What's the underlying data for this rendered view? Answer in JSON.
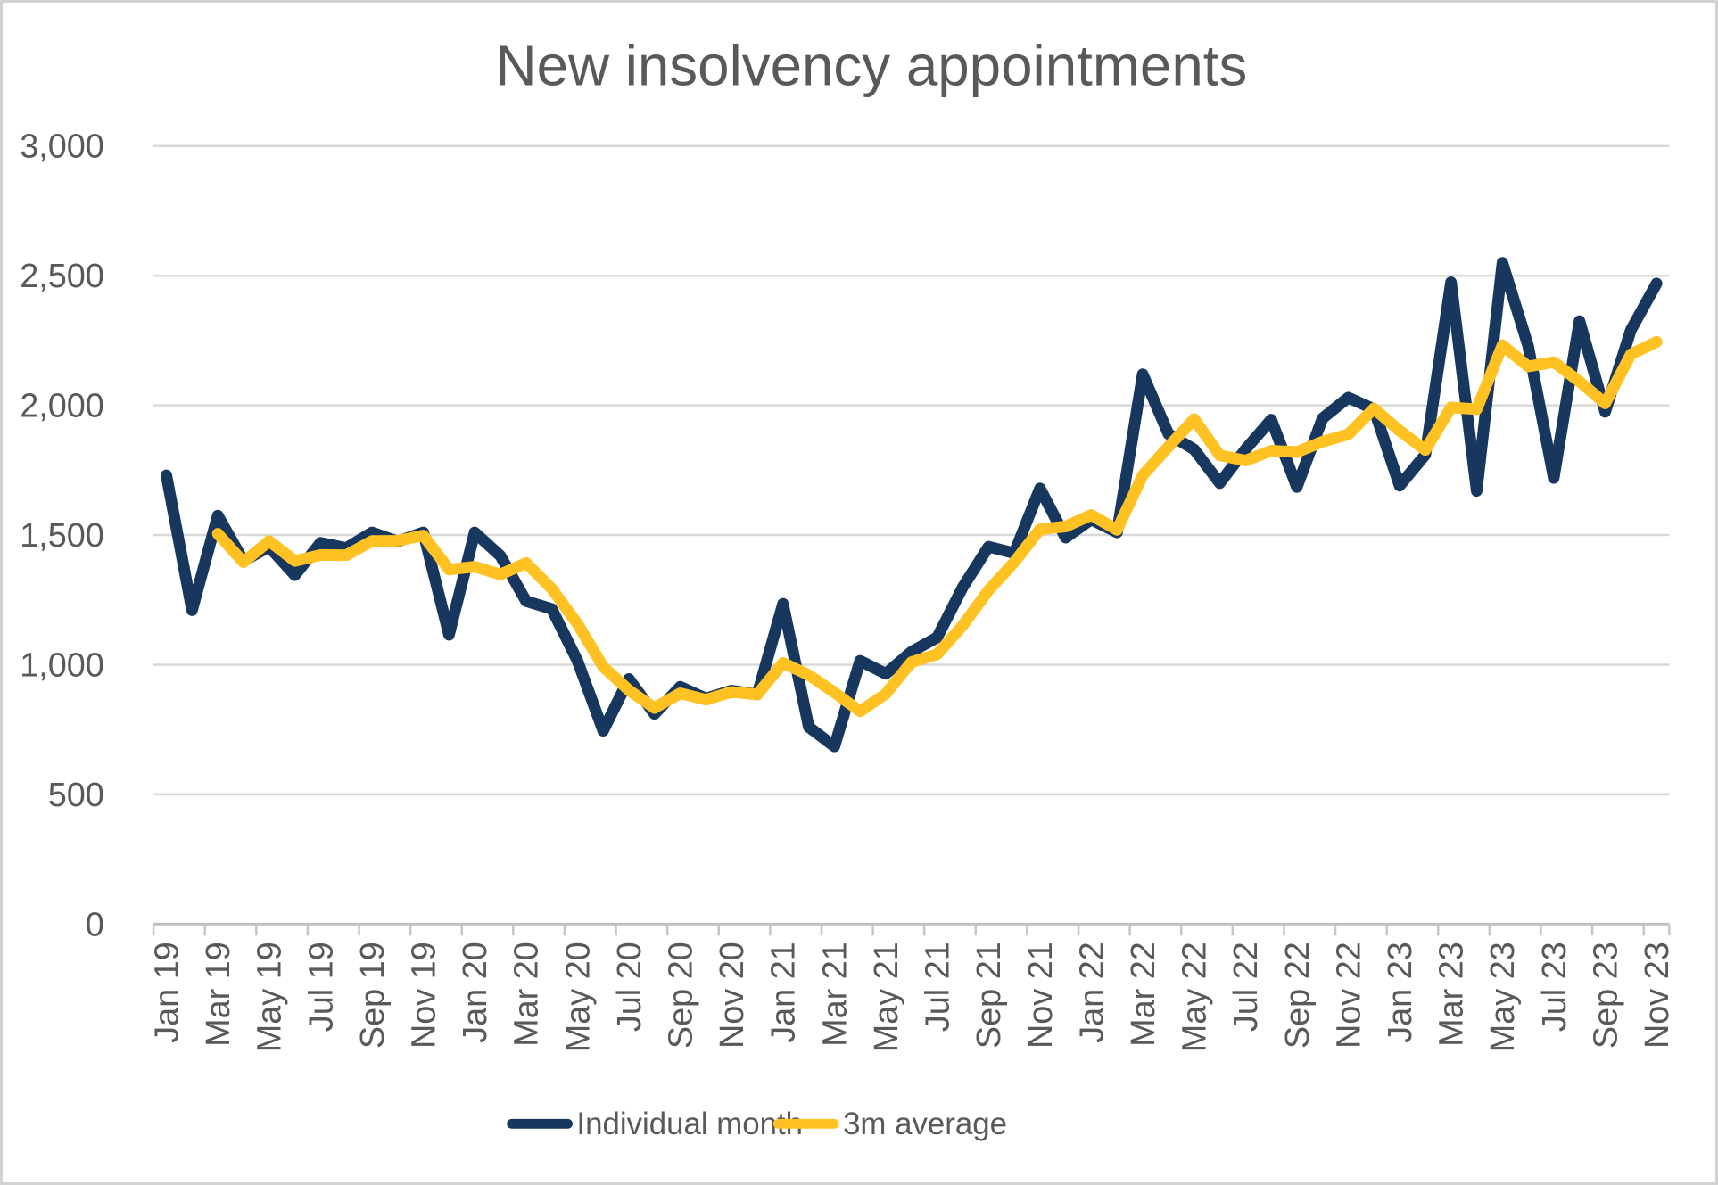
{
  "chart_data": {
    "type": "line",
    "title": "New insolvency appointments",
    "xlabel": "",
    "ylabel": "",
    "ylim": [
      0,
      3000
    ],
    "y_tick_step": 500,
    "y_tick_labels": [
      "0",
      "500",
      "1,000",
      "1,500",
      "2,000",
      "2,500",
      "3,000"
    ],
    "grid": true,
    "legend_position": "bottom",
    "x": [
      "Jan 19",
      "Feb 19",
      "Mar 19",
      "Apr 19",
      "May 19",
      "Jun 19",
      "Jul 19",
      "Aug 19",
      "Sep 19",
      "Oct 19",
      "Nov 19",
      "Dec 19",
      "Jan 20",
      "Feb 20",
      "Mar 20",
      "Apr 20",
      "May 20",
      "Jun 20",
      "Jul 20",
      "Aug 20",
      "Sep 20",
      "Oct 20",
      "Nov 20",
      "Dec 20",
      "Jan 21",
      "Feb 21",
      "Mar 21",
      "Apr 21",
      "May 21",
      "Jun 21",
      "Jul 21",
      "Aug 21",
      "Sep 21",
      "Oct 21",
      "Nov 21",
      "Dec 21",
      "Jan 22",
      "Feb 22",
      "Mar 22",
      "Apr 22",
      "May 22",
      "Jun 22",
      "Jul 22",
      "Aug 22",
      "Sep 22",
      "Oct 22",
      "Nov 22",
      "Dec 22",
      "Jan 23",
      "Feb 23",
      "Mar 23",
      "Apr 23",
      "May 23",
      "Jun 23",
      "Jul 23",
      "Aug 23",
      "Sep 23",
      "Oct 23",
      "Nov 23"
    ],
    "x_labels_shown_every": 2,
    "series": [
      {
        "name": "Individual month",
        "color": "#17375E",
        "start_index": 0,
        "values": [
          1730,
          1210,
          1575,
          1400,
          1455,
          1345,
          1470,
          1450,
          1510,
          1475,
          1510,
          1115,
          1510,
          1420,
          1245,
          1215,
          1015,
          745,
          945,
          810,
          915,
          870,
          900,
          885,
          1235,
          760,
          685,
          1015,
          965,
          1050,
          1105,
          1300,
          1455,
          1430,
          1680,
          1490,
          1560,
          1510,
          2120,
          1890,
          1830,
          1700,
          1830,
          1945,
          1685,
          1950,
          2030,
          1985,
          1690,
          1810,
          2475,
          1670,
          2550,
          2230,
          1720,
          2325,
          1975,
          2290,
          2470
        ]
      },
      {
        "name": "3m average",
        "color": "#FFC222",
        "start_index": 2,
        "values": [
          1505,
          1395,
          1477,
          1400,
          1423,
          1422,
          1477,
          1478,
          1498,
          1367,
          1378,
          1348,
          1392,
          1293,
          1158,
          992,
          902,
          833,
          890,
          865,
          895,
          885,
          1007,
          960,
          893,
          820,
          888,
          1010,
          1040,
          1152,
          1287,
          1395,
          1522,
          1533,
          1577,
          1520,
          1730,
          1840,
          1947,
          1807,
          1787,
          1825,
          1820,
          1860,
          1888,
          1988,
          1902,
          1828,
          1992,
          1985,
          2232,
          2150,
          2167,
          2092,
          2007,
          2197,
          2245
        ]
      }
    ]
  },
  "legend": {
    "items": [
      {
        "label": "Individual month",
        "color": "#17375E"
      },
      {
        "label": "3m average",
        "color": "#FFC222"
      }
    ]
  },
  "colors": {
    "background": "#ffffff",
    "frame_border": "#d2d2d2",
    "gridline": "#d9d9d9",
    "axis_line": "#bfbfbf",
    "tick_mark": "#c6c6c6",
    "text": "#595959"
  }
}
